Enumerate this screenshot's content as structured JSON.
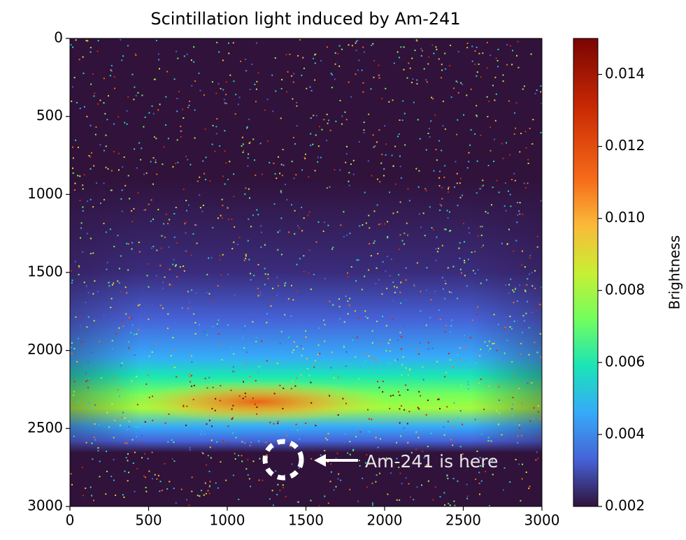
{
  "chart_data": {
    "type": "heatmap",
    "title": "Scintillation light induced by Am-241",
    "xlim": [
      0,
      3000
    ],
    "xticks": [
      0,
      500,
      1000,
      1500,
      2000,
      2500,
      3000
    ],
    "ylim": [
      0,
      3000
    ],
    "yticks": [
      0,
      500,
      1000,
      1500,
      2000,
      2500,
      3000
    ],
    "y_inverted": true,
    "colorbar": {
      "label": "Brightness",
      "colormap": "turbo",
      "lim": [
        0.002,
        0.015
      ],
      "ticks": [
        0.002,
        0.004,
        0.006,
        0.008,
        {
          "value": 0.01,
          "label": "0.010"
        },
        0.012,
        0.014
      ]
    },
    "annotation": {
      "text": "Am-241 is here"
    }
  }
}
